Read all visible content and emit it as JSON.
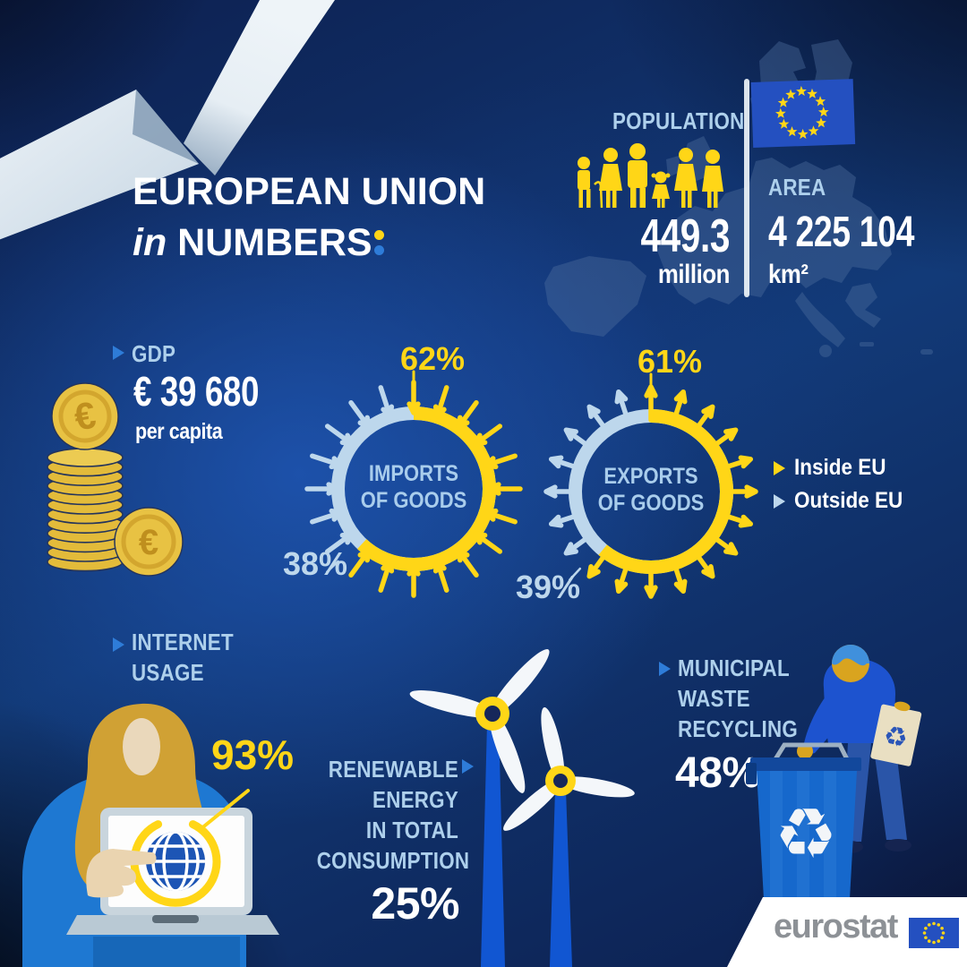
{
  "colors": {
    "accent_yellow": "#ffd617",
    "pale_blue": "#bdd7ec",
    "label_blue": "#aed0ec",
    "arrow_blue": "#2e7cd8",
    "flag_blue": "#2450c0",
    "background_navy": "#123a78"
  },
  "title": {
    "line1": "EUROPEAN UNION",
    "line2_script": "in",
    "line2_rest": "NUMBERS"
  },
  "population": {
    "label": "POPULATION",
    "value": "449.3",
    "unit": "million"
  },
  "area": {
    "label": "AREA",
    "value": "4 225 104",
    "unit": "km²"
  },
  "gdp": {
    "label": "GDP",
    "value": "€ 39 680",
    "unit": "per capita"
  },
  "trade_legend": {
    "items": [
      {
        "label": "Inside EU",
        "color": "#ffd617"
      },
      {
        "label": "Outside EU",
        "color": "#bdd7ec"
      }
    ]
  },
  "internet": {
    "label_line1": "INTERNET",
    "label_line2": "USAGE",
    "value": "93%"
  },
  "renewable": {
    "label_line1": "RENEWABLE",
    "label_line2": "ENERGY",
    "label_line3": "IN TOTAL",
    "label_line4": "CONSUMPTION",
    "value": "25%"
  },
  "waste": {
    "label_line1": "MUNICIPAL",
    "label_line2": "WASTE",
    "label_line3": "RECYCLING",
    "value": "48%"
  },
  "footer": {
    "brand": "eurostat"
  },
  "chart_data": [
    {
      "type": "donut",
      "title_line1": "IMPORTS",
      "title_line2": "OF GOODS",
      "arrow_direction": "inward",
      "arrow_count": 20,
      "segments": [
        {
          "name": "Inside EU",
          "value": 62,
          "label": "62%",
          "color": "#ffd617"
        },
        {
          "name": "Outside EU",
          "value": 38,
          "label": "38%",
          "color": "#bdd7ec"
        }
      ]
    },
    {
      "type": "donut",
      "title_line1": "EXPORTS",
      "title_line2": "OF GOODS",
      "arrow_direction": "outward",
      "arrow_count": 20,
      "segments": [
        {
          "name": "Inside EU",
          "value": 61,
          "label": "61%",
          "color": "#ffd617"
        },
        {
          "name": "Outside EU",
          "value": 39,
          "label": "39%",
          "color": "#bdd7ec"
        }
      ]
    }
  ]
}
